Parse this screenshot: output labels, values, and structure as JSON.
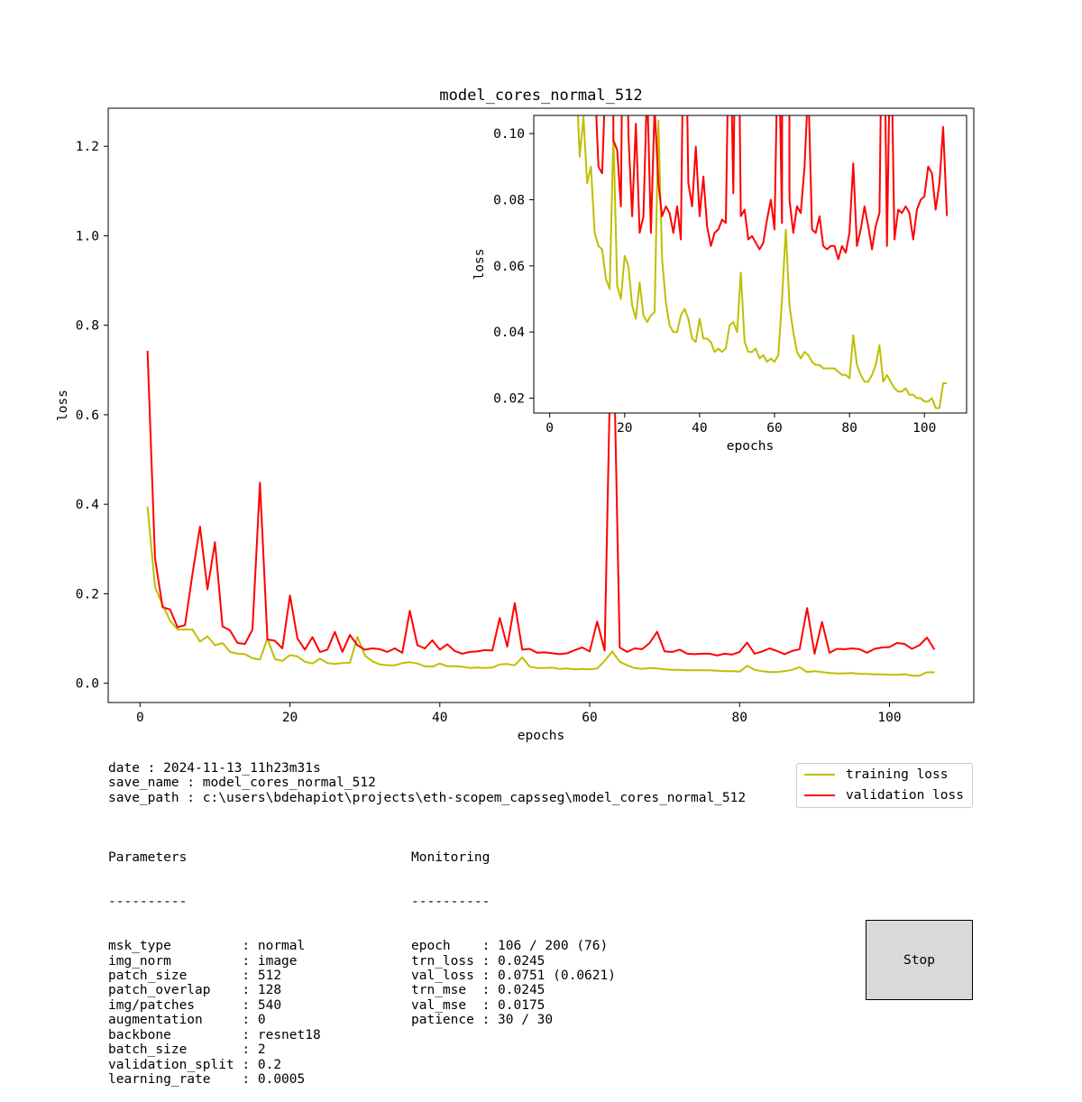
{
  "chart_data": [
    {
      "type": "line",
      "title": "model_cores_normal_512",
      "xlabel": "epochs",
      "ylabel": "loss",
      "xlim": [
        -4.25,
        111.25
      ],
      "ylim": [
        -0.043,
        1.285
      ],
      "xticks": [
        0,
        20,
        40,
        60,
        80,
        100
      ],
      "yticks": [
        0.0,
        0.2,
        0.4,
        0.6,
        0.8,
        1.0,
        1.2
      ],
      "ytick_labels": [
        "0.0",
        "0.2",
        "0.4",
        "0.6",
        "0.8",
        "1.0",
        "1.2"
      ],
      "grid": false,
      "legend_position": "below-right",
      "series": [
        {
          "name": "training loss",
          "color": "#bfbf00",
          "x": [
            1,
            2,
            3,
            4,
            5,
            6,
            7,
            8,
            9,
            10,
            11,
            12,
            13,
            14,
            15,
            16,
            17,
            18,
            19,
            20,
            21,
            22,
            23,
            24,
            25,
            26,
            27,
            28,
            29,
            30,
            31,
            32,
            33,
            34,
            35,
            36,
            37,
            38,
            39,
            40,
            41,
            42,
            43,
            44,
            45,
            46,
            47,
            48,
            49,
            50,
            51,
            52,
            53,
            54,
            55,
            56,
            57,
            58,
            59,
            60,
            61,
            62,
            63,
            64,
            65,
            66,
            67,
            68,
            69,
            70,
            71,
            72,
            73,
            74,
            75,
            76,
            77,
            78,
            79,
            80,
            81,
            82,
            83,
            84,
            85,
            86,
            87,
            88,
            89,
            90,
            91,
            92,
            93,
            94,
            95,
            96,
            97,
            98,
            99,
            100,
            101,
            102,
            103,
            104,
            105,
            106
          ],
          "values": [
            0.395,
            0.215,
            0.175,
            0.14,
            0.12,
            0.12,
            0.12,
            0.093,
            0.105,
            0.085,
            0.09,
            0.07,
            0.066,
            0.065,
            0.056,
            0.053,
            0.1,
            0.054,
            0.05,
            0.063,
            0.06,
            0.048,
            0.044,
            0.055,
            0.045,
            0.043,
            0.045,
            0.046,
            0.104,
            0.062,
            0.049,
            0.042,
            0.04,
            0.04,
            0.045,
            0.047,
            0.044,
            0.038,
            0.037,
            0.044,
            0.038,
            0.038,
            0.037,
            0.034,
            0.035,
            0.034,
            0.035,
            0.042,
            0.043,
            0.04,
            0.058,
            0.037,
            0.034,
            0.034,
            0.035,
            0.032,
            0.033,
            0.031,
            0.032,
            0.031,
            0.033,
            0.05,
            0.071,
            0.048,
            0.04,
            0.034,
            0.032,
            0.034,
            0.033,
            0.031,
            0.03,
            0.03,
            0.029,
            0.029,
            0.029,
            0.029,
            0.028,
            0.027,
            0.027,
            0.026,
            0.039,
            0.03,
            0.027,
            0.025,
            0.025,
            0.027,
            0.03,
            0.036,
            0.025,
            0.027,
            0.025,
            0.023,
            0.022,
            0.022,
            0.023,
            0.021,
            0.021,
            0.02,
            0.02,
            0.019,
            0.019,
            0.02,
            0.017,
            0.017,
            0.0245,
            0.0245
          ]
        },
        {
          "name": "validation loss",
          "color": "#ff0000",
          "x": [
            1,
            2,
            3,
            4,
            5,
            6,
            7,
            8,
            9,
            10,
            11,
            12,
            13,
            14,
            15,
            16,
            17,
            18,
            19,
            20,
            21,
            22,
            23,
            24,
            25,
            26,
            27,
            28,
            29,
            30,
            31,
            32,
            33,
            34,
            35,
            36,
            37,
            38,
            39,
            40,
            41,
            42,
            43,
            44,
            45,
            46,
            47,
            48,
            49,
            50,
            51,
            52,
            53,
            54,
            55,
            56,
            57,
            58,
            59,
            60,
            61,
            62,
            63,
            64,
            65,
            66,
            67,
            68,
            69,
            70,
            71,
            72,
            73,
            74,
            75,
            76,
            77,
            78,
            79,
            80,
            81,
            82,
            83,
            84,
            85,
            86,
            87,
            88,
            89,
            90,
            91,
            92,
            93,
            94,
            95,
            96,
            97,
            98,
            99,
            100,
            101,
            102,
            103,
            104,
            105,
            106
          ],
          "values": [
            0.743,
            0.28,
            0.17,
            0.165,
            0.125,
            0.13,
            0.245,
            0.35,
            0.21,
            0.315,
            0.127,
            0.118,
            0.09,
            0.088,
            0.12,
            0.448,
            0.098,
            0.095,
            0.078,
            0.196,
            0.1,
            0.075,
            0.103,
            0.07,
            0.075,
            0.115,
            0.07,
            0.108,
            0.085,
            0.075,
            0.078,
            0.076,
            0.07,
            0.078,
            0.068,
            0.162,
            0.085,
            0.078,
            0.096,
            0.075,
            0.087,
            0.072,
            0.066,
            0.07,
            0.071,
            0.074,
            0.073,
            0.146,
            0.082,
            0.179,
            0.075,
            0.077,
            0.068,
            0.069,
            0.067,
            0.065,
            0.067,
            0.074,
            0.08,
            0.071,
            0.138,
            0.073,
            0.92,
            0.08,
            0.07,
            0.078,
            0.076,
            0.09,
            0.115,
            0.071,
            0.07,
            0.075,
            0.066,
            0.065,
            0.066,
            0.066,
            0.062,
            0.066,
            0.064,
            0.07,
            0.091,
            0.066,
            0.071,
            0.078,
            0.072,
            0.065,
            0.072,
            0.076,
            0.168,
            0.066,
            0.137,
            0.068,
            0.077,
            0.076,
            0.078,
            0.076,
            0.068,
            0.077,
            0.08,
            0.081,
            0.09,
            0.088,
            0.077,
            0.085,
            0.102,
            0.0751
          ]
        }
      ]
    },
    {
      "type": "line",
      "title": "",
      "xlabel": "epochs",
      "ylabel": "loss",
      "xlim": [
        -4.25,
        111.25
      ],
      "ylim": [
        0.0155,
        0.1055
      ],
      "xticks": [
        0,
        20,
        40,
        60,
        80,
        100
      ],
      "yticks": [
        0.02,
        0.04,
        0.06,
        0.08,
        0.1
      ],
      "ytick_labels": [
        "0.02",
        "0.04",
        "0.06",
        "0.08",
        "0.10"
      ],
      "grid": false,
      "series_ref": "same as main chart (zoomed inset)"
    }
  ],
  "legend": {
    "training_label": "training loss",
    "validation_label": "validation loss"
  },
  "info": {
    "date_line": "date : 2024-11-13_11h23m31s",
    "save_name_line": "save_name : model_cores_normal_512",
    "save_path_line": "save_path : c:\\users\\bdehapiot\\projects\\eth-scopem_capsseg\\model_cores_normal_512"
  },
  "parameters": {
    "header": "Parameters",
    "rule": "----------",
    "lines": [
      "msk_type         : normal",
      "img_norm         : image",
      "patch_size       : 512",
      "patch_overlap    : 128",
      "img/patches      : 540",
      "augmentation     : 0",
      "backbone         : resnet18",
      "batch_size       : 2",
      "validation_split : 0.2",
      "learning_rate    : 0.0005"
    ]
  },
  "monitoring": {
    "header": "Monitoring",
    "rule": "----------",
    "lines": [
      "epoch    : 106 / 200 (76)",
      "trn_loss : 0.0245",
      "val_loss : 0.0751 (0.0621)",
      "trn_mse  : 0.0245",
      "val_mse  : 0.0175",
      "patience : 30 / 30"
    ]
  },
  "controls": {
    "stop_label": "Stop"
  }
}
